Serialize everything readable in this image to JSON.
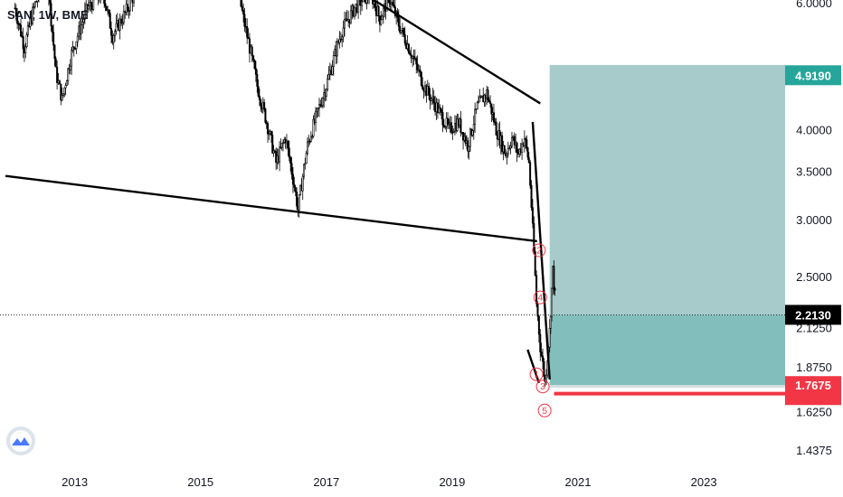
{
  "header": {
    "title": "SAN, 1W, BME"
  },
  "chart_data": {
    "type": "candlestick",
    "symbol": "SAN",
    "interval": "1W",
    "exchange": "BME",
    "ylim": [
      1.35,
      6.5
    ],
    "log_scale": true,
    "price_ticks": [
      "6.0000",
      "4.0000",
      "3.5000",
      "3.0000",
      "2.5000",
      "2.1250",
      "1.8750",
      "1.6250",
      "1.4375"
    ],
    "time_ticks": [
      "2013",
      "2015",
      "2017",
      "2019",
      "2021",
      "2023"
    ],
    "current_price": "2.2130",
    "target_label": "4.9190",
    "stop_label": "1.7675",
    "wave_labels": [
      "1",
      "2",
      "3",
      "4",
      "5",
      "1",
      "3",
      "5"
    ],
    "colors": {
      "profit_zone": "#5fa6a6",
      "loss_line": "#f23645",
      "target_badge": "#26a69a",
      "price_badge": "#000000",
      "candles": "#000000"
    },
    "series_path": [
      [
        2012.05,
        5.9
      ],
      [
        2012.2,
        5.2
      ],
      [
        2012.35,
        5.9
      ],
      [
        2012.55,
        6.6
      ],
      [
        2012.7,
        4.8
      ],
      [
        2012.8,
        4.4
      ],
      [
        2012.95,
        5.1
      ],
      [
        2013.2,
        5.9
      ],
      [
        2013.45,
        6.2
      ],
      [
        2013.6,
        5.4
      ],
      [
        2013.8,
        5.8
      ],
      [
        2014.0,
        6.3
      ],
      [
        2014.3,
        6.6
      ],
      [
        2014.7,
        7.0
      ],
      [
        2015.0,
        6.8
      ],
      [
        2015.2,
        6.4
      ],
      [
        2015.4,
        6.8
      ],
      [
        2015.55,
        6.5
      ],
      [
        2015.7,
        5.6
      ],
      [
        2015.9,
        4.6
      ],
      [
        2016.05,
        4.1
      ],
      [
        2016.2,
        3.6
      ],
      [
        2016.35,
        3.9
      ],
      [
        2016.55,
        3.1
      ],
      [
        2016.7,
        3.8
      ],
      [
        2016.85,
        4.2
      ],
      [
        2017.0,
        4.6
      ],
      [
        2017.25,
        5.5
      ],
      [
        2017.45,
        5.9
      ],
      [
        2017.7,
        6.2
      ],
      [
        2017.85,
        5.7
      ],
      [
        2018.0,
        6.1
      ],
      [
        2018.15,
        5.6
      ],
      [
        2018.35,
        5.1
      ],
      [
        2018.55,
        4.6
      ],
      [
        2018.75,
        4.3
      ],
      [
        2018.95,
        4.0
      ],
      [
        2019.1,
        4.1
      ],
      [
        2019.25,
        3.8
      ],
      [
        2019.4,
        4.3
      ],
      [
        2019.55,
        4.5
      ],
      [
        2019.7,
        4.0
      ],
      [
        2019.85,
        3.7
      ],
      [
        2019.95,
        3.9
      ],
      [
        2020.05,
        3.7
      ],
      [
        2020.15,
        3.9
      ],
      [
        2020.22,
        3.6
      ],
      [
        2020.28,
        2.9
      ],
      [
        2020.34,
        2.3
      ],
      [
        2020.4,
        2.0
      ],
      [
        2020.48,
        1.78
      ],
      [
        2020.55,
        2.1
      ],
      [
        2020.6,
        2.55
      ],
      [
        2020.65,
        2.25
      ]
    ],
    "trendlines": [
      {
        "from": [
          2011.9,
          3.45
        ],
        "to": [
          2020.35,
          2.8
        ]
      },
      {
        "from": [
          2016.15,
          7.4
        ],
        "to": [
          2020.4,
          4.35
        ]
      },
      {
        "from": [
          2020.28,
          4.1
        ],
        "to": [
          2020.55,
          1.8
        ]
      },
      {
        "from": [
          2020.2,
          1.98
        ],
        "to": [
          2020.38,
          1.78
        ]
      }
    ],
    "markers": [
      {
        "label": "1",
        "x": 2020.34,
        "y": 1.83
      },
      {
        "label": "2",
        "x": 2020.38,
        "y": 2.72
      },
      {
        "label": "3",
        "x": 2020.44,
        "y": 1.76
      },
      {
        "label": "4",
        "x": 2020.4,
        "y": 2.34
      },
      {
        "label": "5",
        "x": 2020.47,
        "y": 1.63
      }
    ],
    "projection": {
      "x_start": 2020.55,
      "x_end": 2024.7,
      "entry": 2.213,
      "target": 4.919,
      "stop": 1.7675
    }
  }
}
